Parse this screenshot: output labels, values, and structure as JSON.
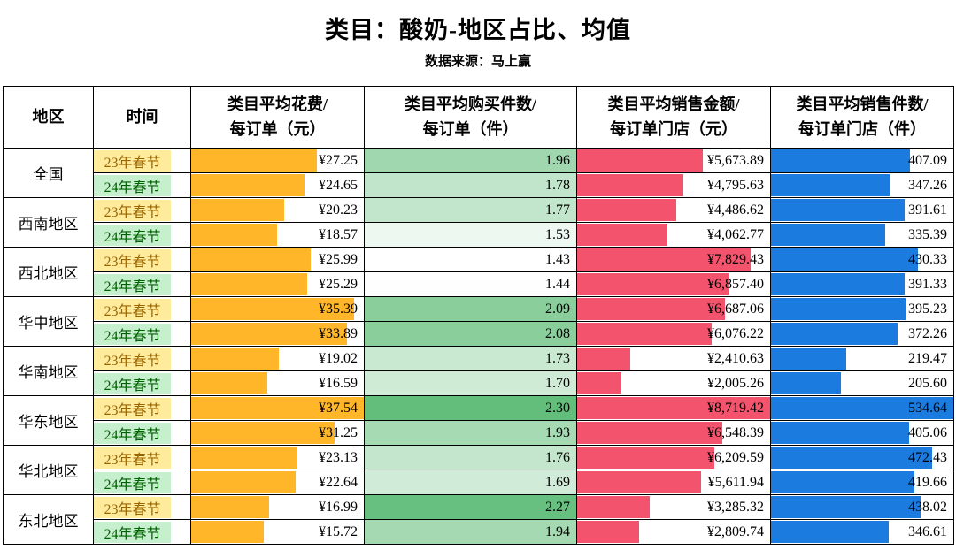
{
  "page": {
    "title": "类目：酸奶-地区占比、均值",
    "subtitle": "数据来源：马上赢"
  },
  "table": {
    "header": {
      "region": "地区",
      "time": "时间",
      "spend_line1": "类目平均花费/",
      "spend_line2": "每订单（元）",
      "items_line1": "类目平均购买件数/",
      "items_line2": "每订单（件）",
      "sales_line1": "类目平均销售金额/",
      "sales_line2": "每订单门店（元）",
      "units_line1": "类目平均销售件数/",
      "units_line2": "每订单门店（件）"
    }
  },
  "style": {
    "bar_orange": "#FFB628",
    "bar_red": "#F4536E",
    "bar_blue": "#1B7BDF",
    "scale_green": "#63BE7B",
    "chip_yellow_bg": "#FFEB9C",
    "chip_yellow_text": "#9C6500",
    "chip_green_bg": "#C6EFCE",
    "chip_green_text": "#006100"
  },
  "chart_data": {
    "type": "table",
    "title": "类目：酸奶-地区占比、均值",
    "subtitle": "数据来源：马上赢",
    "columns": [
      "地区",
      "时间",
      "类目平均花费/每订单（元）",
      "类目平均购买件数/每订单（件）",
      "类目平均销售金额/每订单门店（元）",
      "类目平均销售件数/每订单门店（件）"
    ],
    "periods": [
      "23年春节",
      "24年春节"
    ],
    "scales": {
      "spend_max": 37.54,
      "items_min": 1.43,
      "items_max": 2.3,
      "sales_max": 8719.42,
      "units_max": 534.64
    },
    "rows": [
      {
        "region": "全国",
        "period": "23年春节",
        "period_key": "y23",
        "spend_label": "¥27.25",
        "spend": 27.25,
        "items_label": "1.96",
        "items": 1.96,
        "sales_label": "¥5,673.89",
        "sales": 5673.89,
        "units_label": "407.09",
        "units": 407.09
      },
      {
        "region": "全国",
        "period": "24年春节",
        "period_key": "y24",
        "spend_label": "¥24.65",
        "spend": 24.65,
        "items_label": "1.78",
        "items": 1.78,
        "sales_label": "¥4,795.63",
        "sales": 4795.63,
        "units_label": "347.26",
        "units": 347.26
      },
      {
        "region": "西南地区",
        "period": "23年春节",
        "period_key": "y23",
        "spend_label": "¥20.23",
        "spend": 20.23,
        "items_label": "1.77",
        "items": 1.77,
        "sales_label": "¥4,486.62",
        "sales": 4486.62,
        "units_label": "391.61",
        "units": 391.61
      },
      {
        "region": "西南地区",
        "period": "24年春节",
        "period_key": "y24",
        "spend_label": "¥18.57",
        "spend": 18.57,
        "items_label": "1.53",
        "items": 1.53,
        "sales_label": "¥4,062.77",
        "sales": 4062.77,
        "units_label": "335.39",
        "units": 335.39
      },
      {
        "region": "西北地区",
        "period": "23年春节",
        "period_key": "y23",
        "spend_label": "¥25.99",
        "spend": 25.99,
        "items_label": "1.43",
        "items": 1.43,
        "sales_label": "¥7,829.43",
        "sales": 7829.43,
        "units_label": "430.33",
        "units": 430.33
      },
      {
        "region": "西北地区",
        "period": "24年春节",
        "period_key": "y24",
        "spend_label": "¥25.29",
        "spend": 25.29,
        "items_label": "1.44",
        "items": 1.44,
        "sales_label": "¥6,857.40",
        "sales": 6857.4,
        "units_label": "391.33",
        "units": 391.33
      },
      {
        "region": "华中地区",
        "period": "23年春节",
        "period_key": "y23",
        "spend_label": "¥35.39",
        "spend": 35.39,
        "items_label": "2.09",
        "items": 2.09,
        "sales_label": "¥6,687.06",
        "sales": 6687.06,
        "units_label": "395.23",
        "units": 395.23
      },
      {
        "region": "华中地区",
        "period": "24年春节",
        "period_key": "y24",
        "spend_label": "¥33.89",
        "spend": 33.89,
        "items_label": "2.08",
        "items": 2.08,
        "sales_label": "¥6,076.22",
        "sales": 6076.22,
        "units_label": "372.26",
        "units": 372.26
      },
      {
        "region": "华南地区",
        "period": "23年春节",
        "period_key": "y23",
        "spend_label": "¥19.02",
        "spend": 19.02,
        "items_label": "1.73",
        "items": 1.73,
        "sales_label": "¥2,410.63",
        "sales": 2410.63,
        "units_label": "219.47",
        "units": 219.47
      },
      {
        "region": "华南地区",
        "period": "24年春节",
        "period_key": "y24",
        "spend_label": "¥16.59",
        "spend": 16.59,
        "items_label": "1.70",
        "items": 1.7,
        "sales_label": "¥2,005.26",
        "sales": 2005.26,
        "units_label": "205.60",
        "units": 205.6
      },
      {
        "region": "华东地区",
        "period": "23年春节",
        "period_key": "y23",
        "spend_label": "¥37.54",
        "spend": 37.54,
        "items_label": "2.30",
        "items": 2.3,
        "sales_label": "¥8,719.42",
        "sales": 8719.42,
        "units_label": "534.64",
        "units": 534.64
      },
      {
        "region": "华东地区",
        "period": "24年春节",
        "period_key": "y24",
        "spend_label": "¥31.25",
        "spend": 31.25,
        "items_label": "1.93",
        "items": 1.93,
        "sales_label": "¥6,548.39",
        "sales": 6548.39,
        "units_label": "405.06",
        "units": 405.06
      },
      {
        "region": "华北地区",
        "period": "23年春节",
        "period_key": "y23",
        "spend_label": "¥23.13",
        "spend": 23.13,
        "items_label": "1.76",
        "items": 1.76,
        "sales_label": "¥6,209.59",
        "sales": 6209.59,
        "units_label": "472.43",
        "units": 472.43
      },
      {
        "region": "华北地区",
        "period": "24年春节",
        "period_key": "y24",
        "spend_label": "¥22.64",
        "spend": 22.64,
        "items_label": "1.69",
        "items": 1.69,
        "sales_label": "¥5,611.94",
        "sales": 5611.94,
        "units_label": "419.66",
        "units": 419.66
      },
      {
        "region": "东北地区",
        "period": "23年春节",
        "period_key": "y23",
        "spend_label": "¥16.99",
        "spend": 16.99,
        "items_label": "2.27",
        "items": 2.27,
        "sales_label": "¥3,285.32",
        "sales": 3285.32,
        "units_label": "438.02",
        "units": 438.02
      },
      {
        "region": "东北地区",
        "period": "24年春节",
        "period_key": "y24",
        "spend_label": "¥15.72",
        "spend": 15.72,
        "items_label": "1.94",
        "items": 1.94,
        "sales_label": "¥2,809.74",
        "sales": 2809.74,
        "units_label": "346.61",
        "units": 346.61
      }
    ]
  }
}
